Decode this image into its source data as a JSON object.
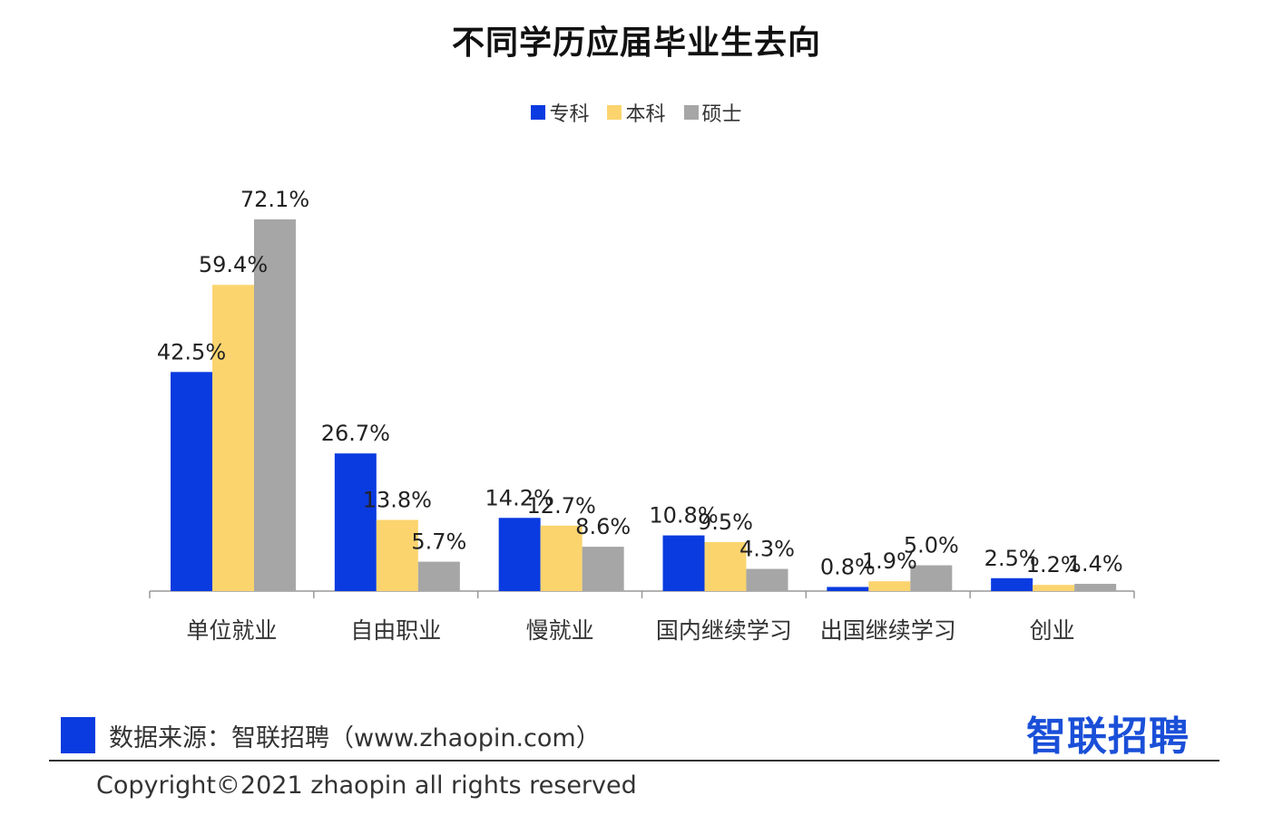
{
  "chart_data": {
    "type": "bar",
    "title": "不同学历应届毕业生去向",
    "xlabel": "",
    "ylabel": "",
    "ylim": [
      0,
      80
    ],
    "grid": false,
    "legend_position": "top-center",
    "categories": [
      "单位就业",
      "自由职业",
      "慢就业",
      "国内继续学习",
      "出国继续学习",
      "创业"
    ],
    "series": [
      {
        "name": "专科",
        "color": "#0a3be0",
        "values": [
          42.5,
          26.7,
          14.2,
          10.8,
          0.8,
          2.5
        ],
        "labels": [
          "42.5%",
          "26.7%",
          "14.2%",
          "10.8%",
          "0.8%",
          "2.5%"
        ]
      },
      {
        "name": "本科",
        "color": "#fbd46e",
        "values": [
          59.4,
          13.8,
          12.7,
          9.5,
          1.9,
          1.2
        ],
        "labels": [
          "59.4%",
          "13.8%",
          "12.7%",
          "9.5%",
          "1.9%",
          "1.2%"
        ]
      },
      {
        "name": "硕士",
        "color": "#a6a6a6",
        "values": [
          72.1,
          5.7,
          8.6,
          4.3,
          5.0,
          1.4
        ],
        "labels": [
          "72.1%",
          "5.7%",
          "8.6%",
          "4.3%",
          "5.0%",
          "1.4%"
        ]
      }
    ]
  },
  "footer": {
    "source": "数据来源：智联招聘（www.zhaopin.com）",
    "copyright": "Copyright©2021 zhaopin all rights reserved",
    "brand": "智联招聘"
  }
}
